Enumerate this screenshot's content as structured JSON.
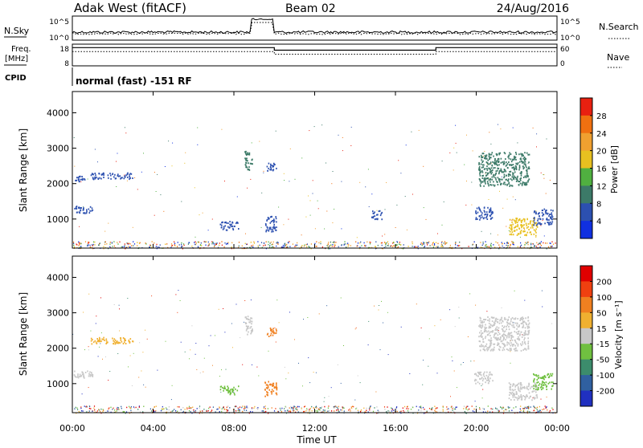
{
  "header": {
    "station": "Adak West (fitACF)",
    "beam": "Beam 02",
    "date": "24/Aug/2016"
  },
  "strip_labels": {
    "nsky": "N.Sky",
    "freq_line1": "Freq.",
    "freq_line2": "[MHz]",
    "cpid": "CPID",
    "nsearch": "N.Search",
    "nave": "Nave",
    "noise_top": "10^5",
    "noise_bottom": "10^0",
    "freq_top": "18",
    "freq_bottom": "8",
    "nave_top": "60",
    "nave_bottom": "0"
  },
  "cpid_text": "normal (fast) -151 RF",
  "axes": {
    "y_label": "Slant Range [km]",
    "x_label": "Time UT",
    "y_ticks": [
      "1000",
      "2000",
      "3000",
      "4000"
    ],
    "x_ticks": [
      "00:00",
      "04:00",
      "08:00",
      "12:00",
      "16:00",
      "20:00",
      "00:00"
    ]
  },
  "power_colorbar": {
    "label": "Power [dB]",
    "ticks": [
      "4",
      "8",
      "12",
      "16",
      "20",
      "24",
      "28"
    ],
    "colors": [
      "#1030e0",
      "#2c50b0",
      "#3c7a68",
      "#50b040",
      "#e8c020",
      "#f0a030",
      "#f07010",
      "#e82010"
    ]
  },
  "velocity_colorbar": {
    "label": "Velocity [m s⁻¹]",
    "ticks": [
      "200",
      "100",
      "50",
      "15",
      "-15",
      "-50",
      "-100",
      "-200"
    ],
    "colors": [
      "#2030c0",
      "#3060a0",
      "#3c8c6c",
      "#70c040",
      "#c8c8c8",
      "#f0b030",
      "#f08020",
      "#f04010",
      "#e00000"
    ]
  },
  "chart_data": [
    {
      "type": "line",
      "title": "N.Sky / N.Search",
      "x_range_hours": [
        0,
        24
      ],
      "ylim_log10": [
        0,
        5
      ]
    },
    {
      "type": "line",
      "title": "Freq. [MHz] / Nave",
      "x_range_hours": [
        0,
        24
      ],
      "freq_ylim": [
        8,
        18
      ],
      "nave_ylim": [
        0,
        60
      ],
      "freq_segments": [
        {
          "start": 0,
          "end": 10,
          "value": 17
        },
        {
          "start": 10,
          "end": 18,
          "value": 15.6
        },
        {
          "start": 18,
          "end": 24,
          "value": 17
        }
      ]
    },
    {
      "type": "heatmap",
      "title": "Power [dB]",
      "xlabel": "Time UT",
      "ylabel": "Slant Range [km]",
      "x_range_hours": [
        0,
        24
      ],
      "ylim_km": [
        180,
        4600
      ],
      "scale": [
        0,
        30
      ],
      "patches": [
        {
          "t": [
            0.0,
            1.0
          ],
          "r": [
            1180,
            1380
          ],
          "v": 4
        },
        {
          "t": [
            0.0,
            0.6
          ],
          "r": [
            2080,
            2230
          ],
          "v": 4
        },
        {
          "t": [
            0.9,
            3.0
          ],
          "r": [
            2140,
            2320
          ],
          "v": 4
        },
        {
          "t": [
            8.5,
            8.9
          ],
          "r": [
            2400,
            2950
          ],
          "v": 8
        },
        {
          "t": [
            9.6,
            10.1
          ],
          "r": [
            2350,
            2600
          ],
          "v": 6
        },
        {
          "t": [
            7.3,
            8.2
          ],
          "r": [
            700,
            950
          ],
          "v": 4
        },
        {
          "t": [
            9.5,
            10.1
          ],
          "r": [
            650,
            1100
          ],
          "v": 6
        },
        {
          "t": [
            14.8,
            15.3
          ],
          "r": [
            1000,
            1250
          ],
          "v": 4
        },
        {
          "t": [
            19.9,
            20.8
          ],
          "r": [
            1000,
            1350
          ],
          "v": 4
        },
        {
          "t": [
            20.1,
            22.6
          ],
          "r": [
            1950,
            2900
          ],
          "v": 8
        },
        {
          "t": [
            21.6,
            23.0
          ],
          "r": [
            550,
            1050
          ],
          "v": 16
        },
        {
          "t": [
            22.8,
            23.8
          ],
          "r": [
            850,
            1300
          ],
          "v": 5
        }
      ]
    },
    {
      "type": "heatmap",
      "title": "Velocity [m s⁻¹]",
      "xlabel": "Time UT",
      "ylabel": "Slant Range [km]",
      "x_range_hours": [
        0,
        24
      ],
      "ylim_km": [
        180,
        4600
      ],
      "scale": [
        -200,
        200
      ],
      "patches": [
        {
          "t": [
            0.0,
            1.0
          ],
          "r": [
            1180,
            1380
          ],
          "v": 0
        },
        {
          "t": [
            0.9,
            3.0
          ],
          "r": [
            2140,
            2320
          ],
          "v": -20
        },
        {
          "t": [
            8.5,
            8.9
          ],
          "r": [
            2400,
            2950
          ],
          "v": 0
        },
        {
          "t": [
            9.6,
            10.1
          ],
          "r": [
            2350,
            2600
          ],
          "v": -60
        },
        {
          "t": [
            7.3,
            8.2
          ],
          "r": [
            700,
            950
          ],
          "v": 20
        },
        {
          "t": [
            9.5,
            10.1
          ],
          "r": [
            650,
            1100
          ],
          "v": -70
        },
        {
          "t": [
            19.9,
            20.8
          ],
          "r": [
            1000,
            1350
          ],
          "v": 0
        },
        {
          "t": [
            20.1,
            22.6
          ],
          "r": [
            1950,
            2900
          ],
          "v": 0
        },
        {
          "t": [
            21.6,
            23.0
          ],
          "r": [
            550,
            1050
          ],
          "v": 0
        },
        {
          "t": [
            22.8,
            23.8
          ],
          "r": [
            850,
            1300
          ],
          "v": 40
        }
      ]
    }
  ]
}
